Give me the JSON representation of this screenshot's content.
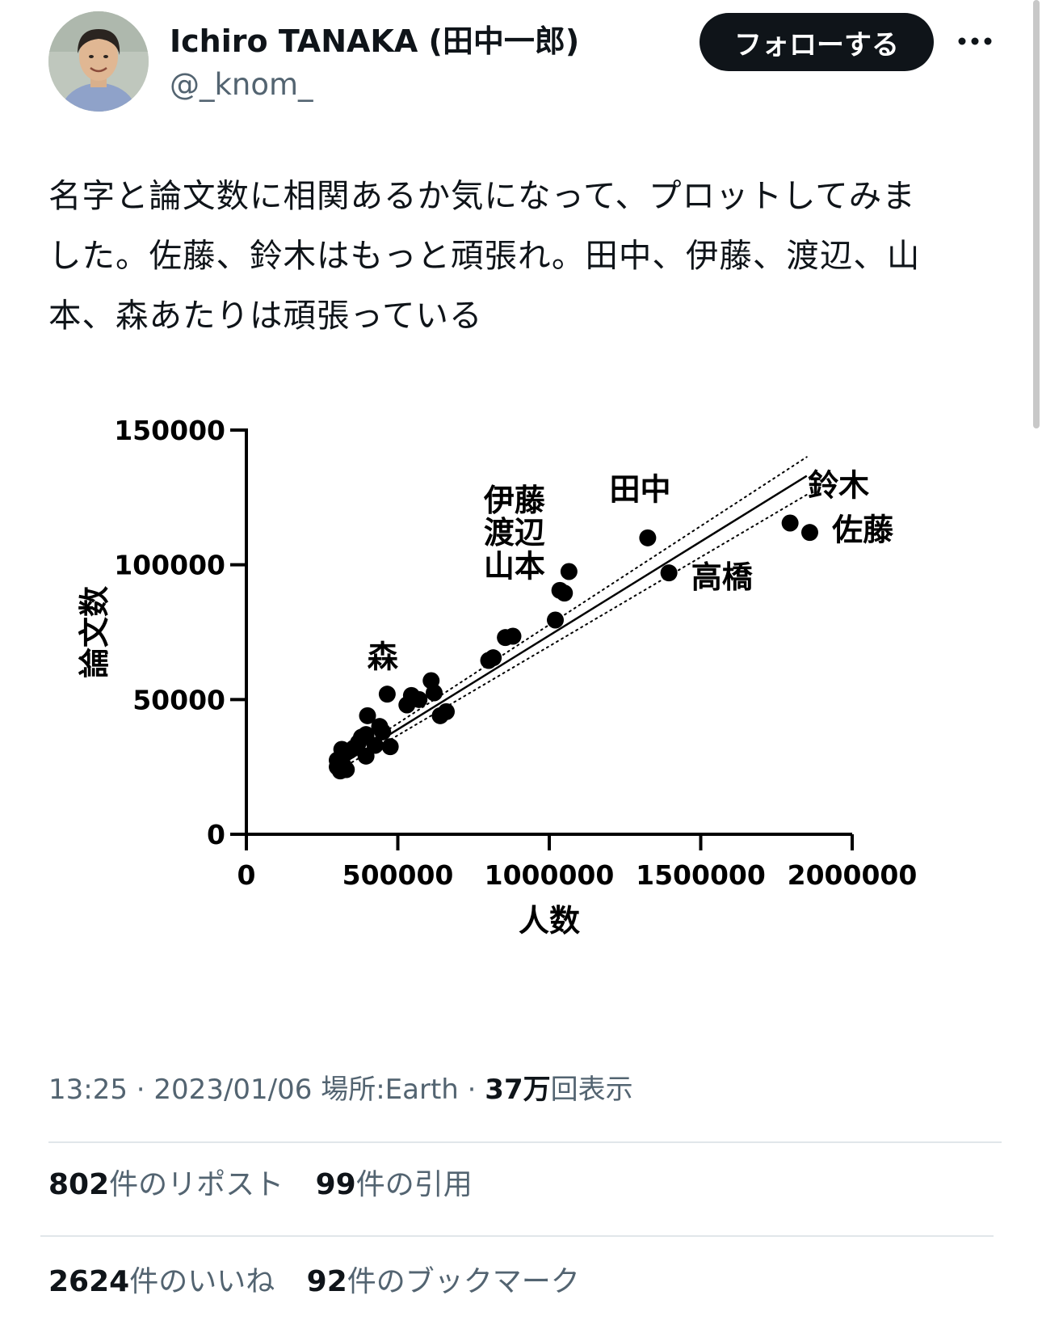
{
  "colors": {
    "text": "#0f1419",
    "secondary": "#536471",
    "follow_bg": "#0f1419",
    "follow_text": "#ffffff",
    "divider": "#e1e6ea"
  },
  "user": {
    "display_name": "Ichiro TANAKA (田中一郎)",
    "handle": "@_knom_"
  },
  "follow_label": "フォローする",
  "more_icon": "more-horizontal-icon",
  "tweet": {
    "lines": [
      "名字と論文数に相関あるか気になって、プロットしてみま",
      "した。佐藤、鈴木はもっと頑張れ。田中、伊藤、渡辺、山",
      "本、森あたりは頑張っている"
    ]
  },
  "meta": {
    "time": "13:25",
    "date": "2023/01/06",
    "location_label": "場所:",
    "location": "Earth",
    "views_count": "37万",
    "views_label": "回表示",
    "separator": "·"
  },
  "stats": {
    "reposts_count": "802",
    "reposts_label": "件のリポスト",
    "quotes_count": "99",
    "quotes_label": "件の引用",
    "likes_count": "2624",
    "likes_label": "件のいいね",
    "bookmarks_count": "92",
    "bookmarks_label": "件のブックマーク"
  },
  "chart_data": {
    "type": "scatter",
    "xlabel": "人数",
    "ylabel": "論文数",
    "xlim": [
      0,
      2000000
    ],
    "ylim": [
      0,
      150000
    ],
    "x_ticks": [
      0,
      500000,
      1000000,
      1500000,
      2000000
    ],
    "x_tick_labels": [
      "0",
      "500000",
      "1000000",
      "1500000",
      "2000000"
    ],
    "y_ticks": [
      0,
      50000,
      100000,
      150000
    ],
    "y_tick_labels": [
      "0",
      "50000",
      "100000",
      "150000"
    ],
    "grid": false,
    "points": [
      {
        "x": 1860000,
        "y": 112000
      },
      {
        "x": 1795000,
        "y": 115500
      },
      {
        "x": 1395000,
        "y": 97000
      },
      {
        "x": 1325000,
        "y": 110000
      },
      {
        "x": 1065000,
        "y": 97500
      },
      {
        "x": 1050000,
        "y": 89500
      },
      {
        "x": 1035000,
        "y": 90500
      },
      {
        "x": 1020000,
        "y": 79500
      },
      {
        "x": 880000,
        "y": 73500
      },
      {
        "x": 855000,
        "y": 73000
      },
      {
        "x": 815000,
        "y": 65500
      },
      {
        "x": 800000,
        "y": 64500
      },
      {
        "x": 660000,
        "y": 45500
      },
      {
        "x": 640000,
        "y": 44000
      },
      {
        "x": 620000,
        "y": 52500
      },
      {
        "x": 610000,
        "y": 57000
      },
      {
        "x": 570000,
        "y": 50000
      },
      {
        "x": 545000,
        "y": 51500
      },
      {
        "x": 530000,
        "y": 48000
      },
      {
        "x": 465000,
        "y": 52000
      },
      {
        "x": 475000,
        "y": 32500
      },
      {
        "x": 440000,
        "y": 40000
      },
      {
        "x": 450000,
        "y": 38000
      },
      {
        "x": 425000,
        "y": 33000
      },
      {
        "x": 400000,
        "y": 44000
      },
      {
        "x": 395000,
        "y": 37000
      },
      {
        "x": 380000,
        "y": 36000
      },
      {
        "x": 370000,
        "y": 34000
      },
      {
        "x": 355000,
        "y": 32000
      },
      {
        "x": 395000,
        "y": 29000
      },
      {
        "x": 340000,
        "y": 31000
      },
      {
        "x": 325000,
        "y": 30000
      },
      {
        "x": 315000,
        "y": 31500
      },
      {
        "x": 310000,
        "y": 28000
      },
      {
        "x": 305000,
        "y": 26500
      },
      {
        "x": 300000,
        "y": 25000
      },
      {
        "x": 300000,
        "y": 27500
      },
      {
        "x": 310000,
        "y": 23500
      },
      {
        "x": 320000,
        "y": 25500
      },
      {
        "x": 330000,
        "y": 24000
      }
    ],
    "fit_line": {
      "x_start": 300000,
      "y_start": 25000,
      "x_end": 1850000,
      "y_end": 133000
    },
    "ci_upper": {
      "x_start": 300000,
      "y_start": 26500,
      "x_end": 1850000,
      "y_end": 140000
    },
    "ci_lower": {
      "x_start": 300000,
      "y_start": 23500,
      "x_end": 1850000,
      "y_end": 126000
    },
    "annotations": [
      {
        "text": "伊藤",
        "x": 885000,
        "y": 120000
      },
      {
        "text": "渡辺",
        "x": 885000,
        "y": 108000
      },
      {
        "text": "山本",
        "x": 885000,
        "y": 95500
      },
      {
        "text": "田中",
        "x": 1300000,
        "y": 124000
      },
      {
        "text": "鈴木",
        "x": 1955000,
        "y": 125500
      },
      {
        "text": "佐藤",
        "x": 2035000,
        "y": 109000
      },
      {
        "text": "高橋",
        "x": 1570000,
        "y": 91500
      },
      {
        "text": "森",
        "x": 450000,
        "y": 62000
      }
    ]
  }
}
